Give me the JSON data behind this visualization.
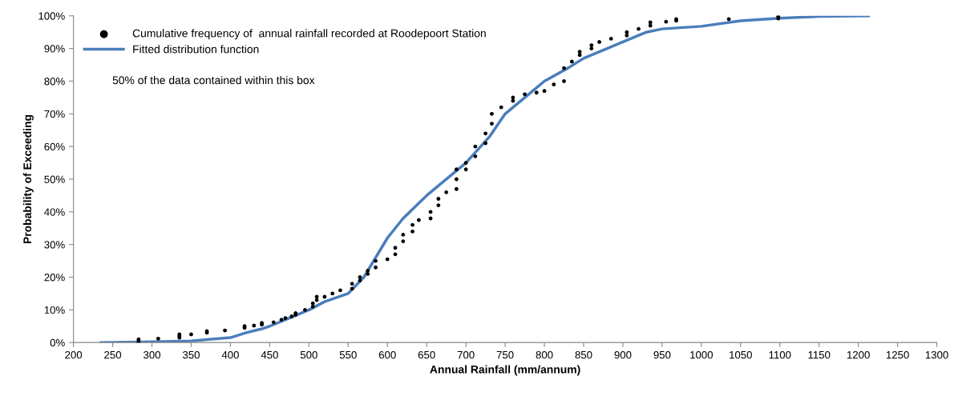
{
  "chart_data": {
    "type": "scatter",
    "xlabel": "Annual Rainfall (mm/annum)",
    "ylabel": "Probability of Exceeding",
    "series": [
      {
        "name": "Cumulative frequency of  annual rainfall recorded at Roodepoort Station",
        "color": "#000000",
        "marker": "circle",
        "x": [
          283,
          283,
          283,
          308,
          335,
          335,
          335,
          350,
          370,
          370,
          393,
          418,
          418,
          430,
          440,
          440,
          455,
          465,
          470,
          478,
          483,
          483,
          495,
          505,
          505,
          510,
          510,
          520,
          530,
          540,
          555,
          555,
          565,
          565,
          575,
          575,
          585,
          585,
          600,
          610,
          610,
          620,
          620,
          632,
          632,
          640,
          655,
          655,
          665,
          665,
          675,
          688,
          688,
          688,
          700,
          700,
          712,
          712,
          725,
          725,
          733,
          733,
          745,
          760,
          760,
          775,
          790,
          800,
          812,
          825,
          825,
          835,
          845,
          845,
          860,
          860,
          870,
          885,
          905,
          905,
          920,
          935,
          935,
          955,
          968,
          968,
          1035,
          1098,
          1098,
          1098
        ],
        "values": [
          0,
          0.5,
          1,
          1.2,
          1.5,
          2,
          2.5,
          2.5,
          3,
          3.5,
          3.7,
          4.5,
          5,
          5.2,
          5.5,
          6,
          6.2,
          7,
          7.5,
          8,
          8.5,
          9,
          10,
          11,
          12,
          13,
          14,
          14,
          15,
          16,
          16.5,
          18,
          19,
          20,
          21,
          22,
          23,
          25,
          25.5,
          27,
          29,
          31,
          33,
          34,
          36,
          37.5,
          38,
          40,
          42,
          44,
          46,
          47,
          50,
          53,
          53,
          55,
          57,
          60,
          61,
          64,
          67,
          70,
          72,
          74,
          75,
          76,
          76.5,
          77,
          79,
          80,
          84,
          86,
          88,
          89,
          90,
          91,
          92,
          93,
          94,
          95,
          96,
          97,
          98,
          98.2,
          98.5,
          99,
          99,
          99.2,
          99.8,
          100
        ]
      },
      {
        "name": "Fitted distribution function",
        "type": "line",
        "color": "#4a7ebb",
        "marker": "none",
        "line_style": "solid",
        "x": [
          235,
          300,
          350,
          400,
          420,
          440,
          450,
          470,
          500,
          520,
          550,
          570,
          585,
          600,
          620,
          650,
          680,
          700,
          730,
          750,
          780,
          800,
          830,
          850,
          880,
          900,
          930,
          950,
          1000,
          1050,
          1100,
          1150,
          1213
        ],
        "values": [
          0,
          0.2,
          0.5,
          1.5,
          3,
          4.2,
          5,
          7,
          10,
          12.5,
          15,
          20,
          26,
          32,
          38,
          45,
          51,
          55,
          63,
          70,
          76,
          80,
          84,
          87,
          90,
          92,
          95,
          96,
          96.8,
          98.5,
          99.3,
          99.8,
          100
        ]
      }
    ],
    "annotations": [
      "50% of the data contained within this box"
    ],
    "xlim": [
      200,
      1300
    ],
    "xticks": [
      200,
      250,
      300,
      350,
      400,
      450,
      500,
      550,
      600,
      650,
      700,
      750,
      800,
      850,
      900,
      950,
      1000,
      1050,
      1100,
      1150,
      1200,
      1250,
      1300
    ],
    "ylim": [
      0,
      100
    ],
    "yticks": [
      {
        "value": 0,
        "label": "0%"
      },
      {
        "value": 10,
        "label": "10%"
      },
      {
        "value": 20,
        "label": "20%"
      },
      {
        "value": 30,
        "label": "30%"
      },
      {
        "value": 40,
        "label": "40%"
      },
      {
        "value": 50,
        "label": "50%"
      },
      {
        "value": 60,
        "label": "60%"
      },
      {
        "value": 70,
        "label": "70%"
      },
      {
        "value": 80,
        "label": "80%"
      },
      {
        "value": 90,
        "label": "90%"
      },
      {
        "value": 100,
        "label": "100%"
      }
    ],
    "grid": false,
    "legend": "top left"
  }
}
